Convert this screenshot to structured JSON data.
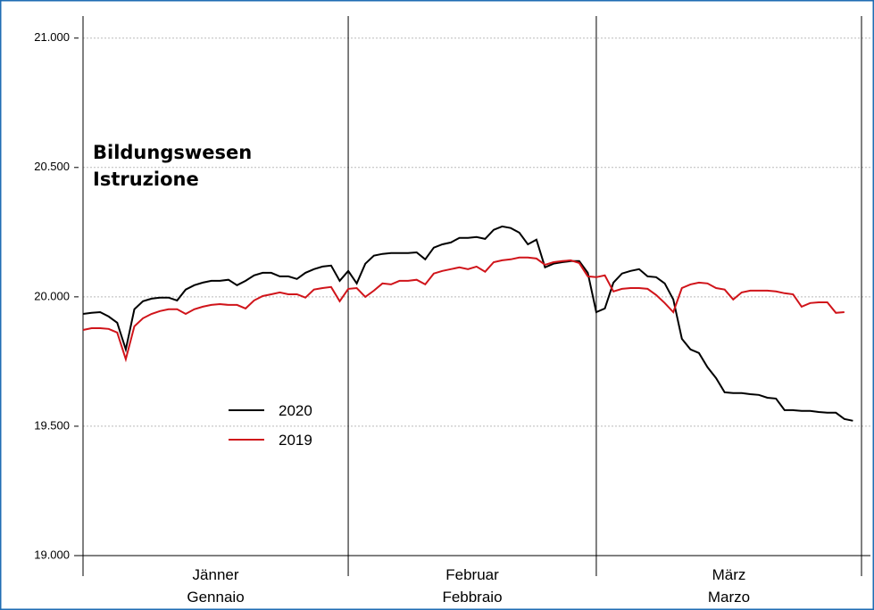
{
  "chart_data": {
    "type": "line",
    "title": [
      "Bildungswesen",
      "Istruzione"
    ],
    "categories": [
      [
        "Jänner",
        "Gennaio"
      ],
      [
        "Februar",
        "Febbraio"
      ],
      [
        "März",
        "Marzo"
      ]
    ],
    "ylim": [
      19000,
      21130
    ],
    "yticks": [
      {
        "value": 19000,
        "label": "19.000"
      },
      {
        "value": 19500,
        "label": "19.500"
      },
      {
        "value": 20000,
        "label": "20.000"
      },
      {
        "value": 20500,
        "label": "20.500"
      },
      {
        "value": 21000,
        "label": "21.000"
      }
    ],
    "grid": true,
    "legend": "left",
    "series": [
      {
        "name": "2020",
        "color": "#000000",
        "values": [
          [
            19934,
            19938,
            19941,
            19924,
            19900,
            19797,
            19952,
            19983,
            19993,
            19997,
            19997,
            19986,
            20028,
            20045,
            20055,
            20062,
            20062,
            20066,
            20045,
            20062,
            20083,
            20093,
            20093,
            20079,
            20079,
            20069,
            20093,
            20107,
            20117,
            20121,
            20062
          ],
          [
            20100,
            20052,
            20128,
            20159,
            20166,
            20169,
            20169,
            20169,
            20172,
            20145,
            20190,
            20203,
            20210,
            20228,
            20228,
            20231,
            20224,
            20259,
            20272,
            20266,
            20248,
            20203,
            20221,
            20114,
            20128,
            20134,
            20138,
            20138,
            20093
          ],
          [
            19941,
            19955,
            20055,
            20090,
            20100,
            20107,
            20079,
            20076,
            20052,
            19990,
            19838,
            19797,
            19783,
            19728,
            19686,
            19631,
            19628,
            19628,
            19624,
            19621,
            19610,
            19607,
            19562,
            19562,
            19559,
            19559,
            19555,
            19552,
            19552,
            19528,
            19521
          ]
        ]
      },
      {
        "name": "2019",
        "color": "#d0141a",
        "values": [
          [
            19872,
            19879,
            19879,
            19876,
            19862,
            19759,
            19886,
            19917,
            19934,
            19945,
            19952,
            19952,
            19934,
            19952,
            19962,
            19969,
            19972,
            19969,
            19969,
            19955,
            19986,
            20003,
            20010,
            20017,
            20010,
            20010,
            19997,
            20028,
            20034,
            20038,
            19983
          ],
          [
            20031,
            20034,
            20000,
            20024,
            20052,
            20048,
            20062,
            20062,
            20066,
            20048,
            20090,
            20100,
            20107,
            20114,
            20107,
            20117,
            20097,
            20134,
            20141,
            20145,
            20152,
            20152,
            20148,
            20124,
            20134,
            20138,
            20141,
            20131,
            20079
          ],
          [
            20076,
            20083,
            20021,
            20031,
            20034,
            20034,
            20031,
            20007,
            19976,
            19941,
            20034,
            20048,
            20055,
            20052,
            20034,
            20028,
            19990,
            20017,
            20024,
            20024,
            20024,
            20021,
            20014,
            20010,
            19962,
            19976,
            19979,
            19979,
            19938,
            19941,
            null
          ]
        ]
      }
    ]
  }
}
